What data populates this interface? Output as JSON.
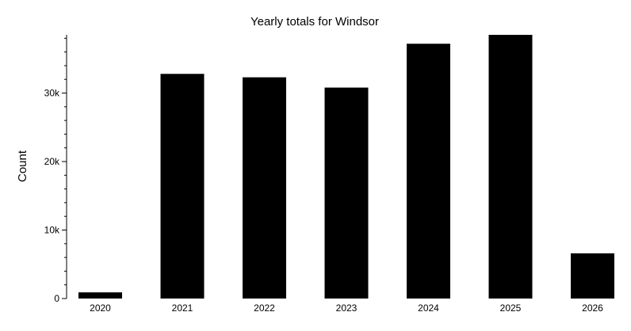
{
  "chart_data": {
    "type": "bar",
    "title": "Yearly totals for Windsor",
    "xlabel": "",
    "ylabel": "Count",
    "categories": [
      "2020",
      "2021",
      "2022",
      "2023",
      "2024",
      "2025",
      "2026"
    ],
    "values": [
      900,
      32800,
      32300,
      30800,
      37200,
      38500,
      6600
    ],
    "ylim": [
      0,
      38500
    ],
    "yticks": [
      0,
      10000,
      20000,
      30000
    ],
    "ytick_labels": [
      "0",
      "10k",
      "20k",
      "30k"
    ],
    "minor_tick_step": 2000,
    "grid": false,
    "legend": "none",
    "bar_color": "#000000"
  }
}
